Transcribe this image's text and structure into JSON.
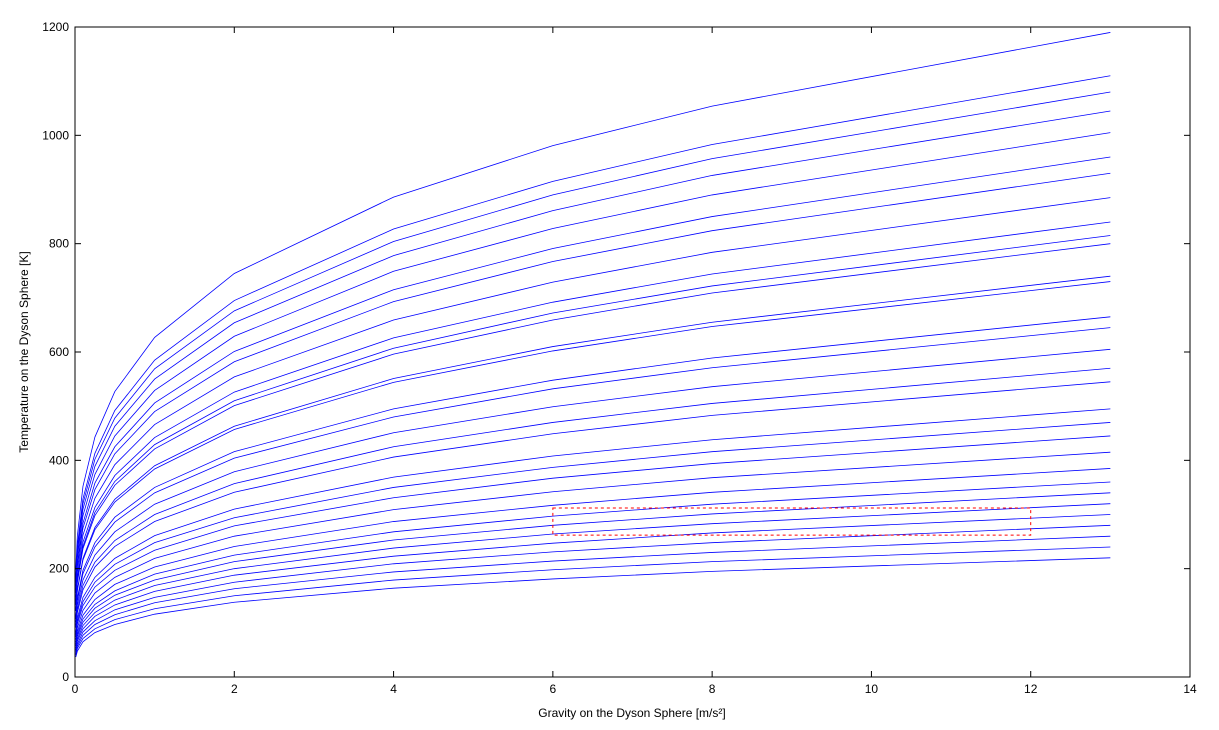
{
  "chart_data": {
    "type": "line",
    "xlabel": "Gravity on the Dyson Sphere  [m/s²]",
    "ylabel": "Temperature on the Dyson Sphere [K]",
    "color": "#0000ff",
    "x": [
      0.01,
      0.03,
      0.1,
      0.25,
      0.5,
      1,
      2,
      4,
      6,
      8,
      13
    ],
    "series": [
      {
        "values": [
          198,
          261,
          352,
          443,
          527,
          627,
          745,
          886,
          981,
          1054,
          1190
        ]
      },
      {
        "values": [
          185,
          243,
          329,
          413,
          492,
          585,
          695,
          827,
          915,
          983,
          1110
        ]
      },
      {
        "values": [
          180,
          237,
          320,
          402,
          478,
          569,
          676,
          804,
          890,
          957,
          1080
        ]
      },
      {
        "values": [
          174,
          229,
          310,
          389,
          463,
          550,
          654,
          778,
          861,
          926,
          1045
        ]
      },
      {
        "values": [
          167,
          220,
          298,
          374,
          445,
          529,
          629,
          749,
          828,
          890,
          1005
        ]
      },
      {
        "values": [
          160,
          210,
          284,
          358,
          425,
          506,
          601,
          715,
          791,
          850,
          960
        ]
      },
      {
        "values": [
          155,
          204,
          275,
          346,
          412,
          490,
          582,
          693,
          767,
          824,
          930
        ]
      },
      {
        "values": [
          147,
          194,
          262,
          330,
          392,
          466,
          554,
          659,
          729,
          784,
          885
        ]
      },
      {
        "values": [
          140,
          184,
          249,
          313,
          372,
          442,
          526,
          626,
          692,
          744,
          840
        ]
      },
      {
        "values": [
          136,
          179,
          241,
          304,
          361,
          429,
          510,
          607,
          672,
          722,
          815
        ]
      },
      {
        "values": [
          133,
          175,
          237,
          298,
          354,
          421,
          501,
          596,
          659,
          709,
          800
        ]
      },
      {
        "values": [
          123,
          162,
          219,
          276,
          328,
          390,
          463,
          551,
          610,
          655,
          740
        ]
      },
      {
        "values": [
          122,
          160,
          216,
          272,
          323,
          384,
          457,
          544,
          602,
          647,
          730
        ]
      },
      {
        "values": [
          111,
          146,
          197,
          248,
          295,
          350,
          416,
          495,
          548,
          589,
          665
        ]
      },
      {
        "values": [
          107,
          141,
          191,
          240,
          286,
          340,
          404,
          480,
          532,
          571,
          645
        ]
      },
      {
        "values": [
          101,
          133,
          179,
          225,
          268,
          319,
          379,
          451,
          499,
          536,
          605
        ]
      },
      {
        "values": [
          95,
          125,
          169,
          212,
          252,
          300,
          357,
          425,
          470,
          505,
          570
        ]
      },
      {
        "values": [
          91,
          119,
          161,
          203,
          241,
          287,
          341,
          406,
          449,
          483,
          545
        ]
      },
      {
        "values": [
          82,
          109,
          147,
          184,
          219,
          261,
          310,
          369,
          408,
          438,
          495
        ]
      },
      {
        "values": [
          78,
          103,
          139,
          175,
          208,
          248,
          294,
          350,
          387,
          416,
          470
        ]
      },
      {
        "values": [
          74,
          98,
          132,
          166,
          197,
          234,
          279,
          331,
          367,
          394,
          445
        ]
      },
      {
        "values": [
          69,
          91,
          123,
          155,
          184,
          219,
          260,
          309,
          342,
          368,
          415
        ]
      },
      {
        "values": [
          64,
          84,
          114,
          143,
          171,
          203,
          241,
          287,
          317,
          341,
          385
        ]
      },
      {
        "values": [
          60,
          79,
          107,
          134,
          159,
          190,
          225,
          268,
          297,
          319,
          360
        ]
      },
      {
        "values": [
          57,
          75,
          101,
          127,
          151,
          179,
          213,
          253,
          280,
          301,
          340
        ]
      },
      {
        "values": [
          53,
          70,
          95,
          119,
          142,
          169,
          200,
          238,
          264,
          283,
          320
        ]
      },
      {
        "values": [
          50,
          66,
          89,
          112,
          133,
          158,
          188,
          223,
          247,
          266,
          300
        ]
      },
      {
        "values": [
          47,
          61,
          83,
          104,
          124,
          147,
          175,
          209,
          231,
          248,
          280
        ]
      },
      {
        "values": [
          43,
          57,
          77,
          97,
          115,
          137,
          163,
          194,
          214,
          230,
          260
        ]
      },
      {
        "values": [
          40,
          53,
          71,
          89,
          106,
          126,
          150,
          179,
          198,
          213,
          240
        ]
      },
      {
        "values": [
          37,
          48,
          65,
          82,
          97,
          116,
          138,
          164,
          181,
          195,
          220
        ]
      }
    ],
    "region": {
      "x": [
        6,
        12
      ],
      "y": [
        262,
        312
      ],
      "color": "#ff0000"
    },
    "xlim": [
      0,
      14
    ],
    "xticks": [
      0,
      2,
      4,
      6,
      8,
      10,
      12,
      14
    ],
    "ylim": [
      0,
      1200
    ],
    "yticks": [
      0,
      200,
      400,
      600,
      800,
      1000,
      1200
    ]
  }
}
